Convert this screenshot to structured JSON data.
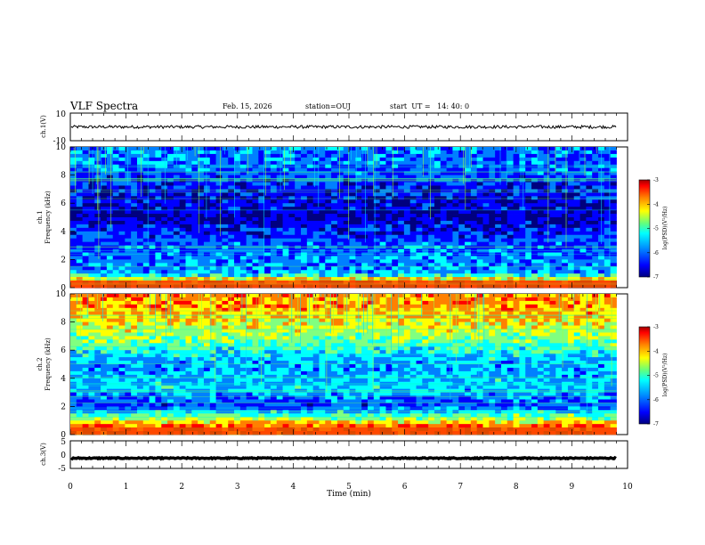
{
  "header": {
    "title": "VLF Spectra",
    "date": "Feb. 15, 2026",
    "station": "station=OUJ",
    "start_ut": "start  UT =   14: 40: 0"
  },
  "chart_data": [
    {
      "type": "line",
      "panel": "ch1-waveform",
      "ylabel": "ch.1(V)",
      "ylim": [
        -10,
        10
      ],
      "y_ticks": [
        "10",
        "-10"
      ],
      "x": [
        0,
        9.8
      ],
      "level": 0,
      "colors": {
        "trace": "#000000"
      }
    },
    {
      "type": "heatmap",
      "panel": "ch1-spectrogram",
      "ylabel": [
        "ch.1",
        "Frequency (kHz)"
      ],
      "ylim": [
        0,
        10
      ],
      "xlim": [
        0,
        9.8
      ],
      "y_ticks": [
        "0",
        "2",
        "4",
        "6",
        "8",
        "10"
      ],
      "colorbar": {
        "label": "log(PSD)(V²/Hz)",
        "range": [
          -7,
          -3
        ],
        "ticks": [
          "-3",
          "-4",
          "-5",
          "-6",
          "-7"
        ]
      },
      "intensity_profile": [
        {
          "freq_khz": 0.3,
          "log_psd": -3.4
        },
        {
          "freq_khz": 1.0,
          "log_psd": -5.8
        },
        {
          "freq_khz": 2.0,
          "log_psd": -5.9
        },
        {
          "freq_khz": 3.3,
          "log_psd": -6.1
        },
        {
          "freq_khz": 5.0,
          "log_psd": -6.6
        },
        {
          "freq_khz": 7.0,
          "log_psd": -6.3
        },
        {
          "freq_khz": 9.0,
          "log_psd": -5.9
        }
      ]
    },
    {
      "type": "heatmap",
      "panel": "ch2-spectrogram",
      "ylabel": [
        "ch.2",
        "Frequency (kHz)"
      ],
      "ylim": [
        0,
        10
      ],
      "xlim": [
        0,
        9.8
      ],
      "y_ticks": [
        "0",
        "2",
        "4",
        "6",
        "8",
        "10"
      ],
      "colorbar": {
        "label": "log(PSD)(V²/Hz)",
        "range": [
          -7,
          -3
        ],
        "ticks": [
          "-3",
          "-4",
          "-5",
          "-6",
          "-7"
        ]
      },
      "intensity_profile": [
        {
          "freq_khz": 0.3,
          "log_psd": -3.5
        },
        {
          "freq_khz": 2.0,
          "log_psd": -6.2
        },
        {
          "freq_khz": 3.3,
          "log_psd": -5.6
        },
        {
          "freq_khz": 5.0,
          "log_psd": -5.8
        },
        {
          "freq_khz": 7.0,
          "log_psd": -4.9
        },
        {
          "freq_khz": 9.0,
          "log_psd": -4.2
        }
      ]
    },
    {
      "type": "line",
      "panel": "ch3-waveform",
      "ylabel": "ch.3(V)",
      "ylim": [
        -5,
        5
      ],
      "y_ticks": [
        "5",
        "0",
        "-5"
      ],
      "x": [
        0,
        9.8
      ],
      "level": -1.3,
      "colors": {
        "trace": "#000000"
      }
    }
  ],
  "x_axis": {
    "label": "Time (min)",
    "ticks": [
      "0",
      "1",
      "2",
      "3",
      "4",
      "5",
      "6",
      "7",
      "8",
      "9",
      "10"
    ],
    "range": [
      0,
      10
    ]
  },
  "colormap": [
    "#00007f",
    "#0000ff",
    "#0080ff",
    "#00ffff",
    "#80ff80",
    "#ffff00",
    "#ff8000",
    "#ff0000",
    "#7f0000"
  ]
}
